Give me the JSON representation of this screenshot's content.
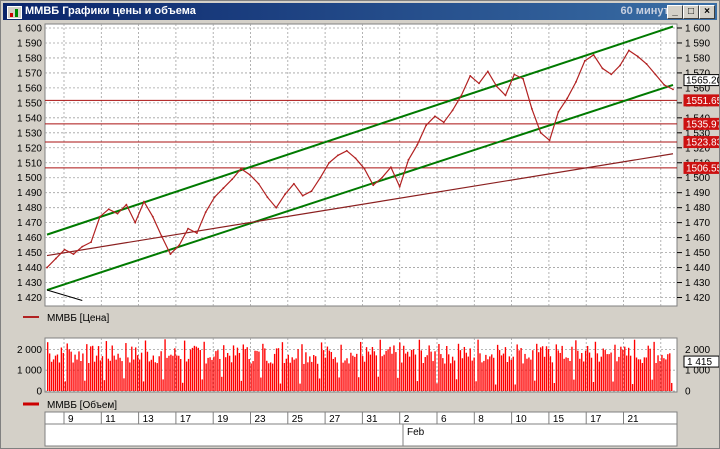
{
  "window": {
    "title": "ММВБ Графики цены и объема",
    "timeframe": "60 минут"
  },
  "price_legend": "ММВБ [Цена]",
  "volume_legend": "ММВБ [Объем]",
  "colors": {
    "price": "#b22222",
    "channel": "#007a00",
    "trend": "#8b2020",
    "volume": "#ff0000",
    "grid": "#a0a0a0",
    "level": "#aa1111"
  },
  "chart_data": [
    {
      "type": "line",
      "series": [
        {
          "name": "ММВБ [Цена]",
          "values": [
            1440,
            1446,
            1452,
            1449,
            1454,
            1457,
            1474,
            1479,
            1476,
            1482,
            1470,
            1484,
            1474,
            1461,
            1449,
            1455,
            1466,
            1463,
            1477,
            1487,
            1493,
            1499,
            1506,
            1502,
            1496,
            1487,
            1480,
            1489,
            1496,
            1488,
            1491,
            1500,
            1510,
            1515,
            1518,
            1513,
            1506,
            1495,
            1500,
            1507,
            1494,
            1512,
            1522,
            1535,
            1541,
            1537,
            1545,
            1555,
            1568,
            1563,
            1571,
            1561,
            1555,
            1569,
            1566,
            1546,
            1530,
            1525,
            1544,
            1553,
            1564,
            1578,
            1582,
            1573,
            1569,
            1575,
            1585,
            1581,
            1576,
            1569,
            1562,
            1559
          ],
          "last_value": 1565.2
        }
      ],
      "ylim": [
        1415,
        1602
      ],
      "y_ticks": [
        1420,
        1430,
        1440,
        1450,
        1460,
        1470,
        1480,
        1490,
        1500,
        1510,
        1520,
        1530,
        1540,
        1550,
        1560,
        1570,
        1580,
        1590,
        1600
      ],
      "y_tick_labels": [
        "1 420",
        "1 430",
        "1 440",
        "1 450",
        "1 460",
        "1 470",
        "1 480",
        "1 490",
        "1 500",
        "1 510",
        "1 520",
        "1 530",
        "1 540",
        "1 550",
        "1 560",
        "1 570",
        "1 580",
        "1 590",
        "1 600"
      ],
      "level_lines": [
        {
          "value": 1551.65,
          "label": "1551.65"
        },
        {
          "value": 1535.97,
          "label": "1535.97"
        },
        {
          "value": 1523.83,
          "label": "1523.83"
        },
        {
          "value": 1506.55,
          "label": "1506.55"
        }
      ],
      "last_price_label": "1565.20",
      "channel_upper": [
        [
          0,
          1462
        ],
        [
          71,
          1601
        ]
      ],
      "channel_lower": [
        [
          0,
          1425
        ],
        [
          71,
          1562
        ]
      ],
      "trend_line": [
        [
          0,
          1448
        ],
        [
          71,
          1516
        ]
      ],
      "grid": true
    },
    {
      "type": "bar",
      "series": [
        {
          "name": "ММВБ [Объем]"
        }
      ],
      "ylim": [
        0,
        2500
      ],
      "y_ticks": [
        0,
        1000,
        2000
      ],
      "y_tick_labels": [
        "0",
        "1 000",
        "2 000"
      ],
      "last_value_label": "1 415",
      "session_days": [
        "",
        "9",
        "",
        "11",
        "",
        "13",
        "",
        "17",
        "",
        "19",
        "",
        "23",
        "",
        "25",
        "",
        "27",
        "",
        "31",
        "",
        "2",
        "",
        "6",
        "",
        "8",
        "",
        "10",
        "",
        "15",
        "",
        "17",
        "",
        "21"
      ],
      "grid": true
    }
  ],
  "x_axis": {
    "day_labels": [
      "9",
      "11",
      "13",
      "17",
      "19",
      "23",
      "25",
      "27",
      "31",
      "2",
      "6",
      "8",
      "10",
      "15",
      "17",
      "21"
    ],
    "month_label": "Feb"
  }
}
